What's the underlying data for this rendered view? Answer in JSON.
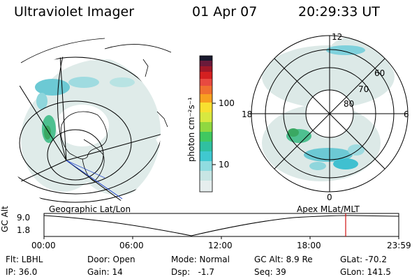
{
  "header": {
    "instrument": "Ultraviolet Imager",
    "date": "01 Apr 07",
    "time": "20:29:33 UT"
  },
  "colorbar": {
    "label": "photon cm⁻²s⁻¹",
    "ticks": [
      "100",
      "10"
    ]
  },
  "polar_plot": {
    "mlt_labels": {
      "top": "12",
      "left": "18",
      "right": "6",
      "bottom": "0"
    },
    "lat_labels": [
      "60",
      "70",
      "80"
    ]
  },
  "timeline": {
    "ylabel": "GC Alt",
    "yticks": [
      "9.0",
      "1.8"
    ],
    "left_caption": "Geographic Lat/Lon",
    "right_caption": "Apex MLat/MLT",
    "xticks": [
      "00:00",
      "06:00",
      "12:00",
      "18:00",
      "23:59"
    ],
    "marker_color": "#d01010"
  },
  "status": {
    "flt": "Flt: LBHL",
    "door": "Door: Open",
    "mode": "Mode: Normal",
    "gc_alt": "GC Alt: 8.9 Re",
    "glat": "GLat: -70.2",
    "ip": "IP: 36.0",
    "gain": "Gain: 14",
    "dsp": "Dsp:   -1.7",
    "seq": "Seq: 39",
    "glon": "GLon: 141.5"
  },
  "colors": {
    "faint": "#d8e8e6",
    "cyan": "#40c8d8",
    "green": "#40c870"
  }
}
